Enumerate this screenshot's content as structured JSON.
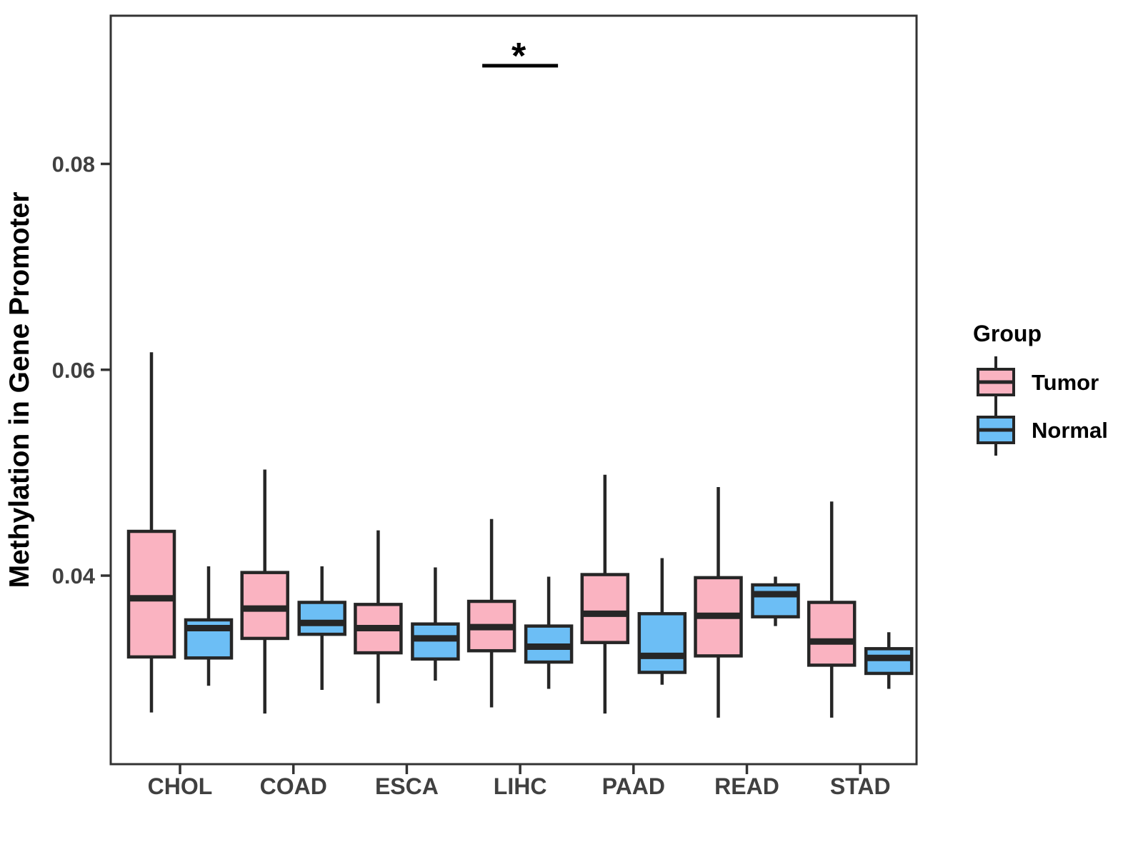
{
  "chart_data": {
    "type": "grouped_boxplot",
    "title": "",
    "xlabel": "",
    "ylabel": "Methylation in Gene Promoter",
    "categories": [
      "CHOL",
      "COAD",
      "ESCA",
      "LIHC",
      "PAAD",
      "READ",
      "STAD"
    ],
    "yticks": [
      0.04,
      0.06,
      0.08
    ],
    "yticklabels": [
      "0.04",
      "0.06",
      "0.08"
    ],
    "ylim": [
      0.0217,
      0.0944
    ],
    "grid": "off",
    "panel_border": true,
    "legend": {
      "title": "Group",
      "position": "right",
      "entries": [
        {
          "label": "Tumor",
          "color": "#FAB3C1"
        },
        {
          "label": "Normal",
          "color": "#6CBEF5"
        }
      ]
    },
    "significance": {
      "category": "LIHC",
      "label": "*",
      "comparison": "Tumor vs Normal"
    },
    "style": {
      "box_edge_color": "#262626",
      "tick_label_color": "#404040",
      "panel_border_color": "#333333"
    },
    "series": [
      {
        "name": "Tumor",
        "color": "#FAB3C1",
        "boxes": [
          {
            "category": "CHOL",
            "low": 0.0267,
            "q1": 0.0321,
            "median": 0.0378,
            "q3": 0.0443,
            "high": 0.0617
          },
          {
            "category": "COAD",
            "low": 0.0266,
            "q1": 0.0339,
            "median": 0.0368,
            "q3": 0.0403,
            "high": 0.0503
          },
          {
            "category": "ESCA",
            "low": 0.0276,
            "q1": 0.0325,
            "median": 0.0349,
            "q3": 0.0372,
            "high": 0.0444
          },
          {
            "category": "LIHC",
            "low": 0.0272,
            "q1": 0.0327,
            "median": 0.035,
            "q3": 0.0375,
            "high": 0.0455
          },
          {
            "category": "PAAD",
            "low": 0.0266,
            "q1": 0.0335,
            "median": 0.0363,
            "q3": 0.0401,
            "high": 0.0498
          },
          {
            "category": "READ",
            "low": 0.0262,
            "q1": 0.0322,
            "median": 0.0361,
            "q3": 0.0398,
            "high": 0.0486
          },
          {
            "category": "STAD",
            "low": 0.0262,
            "q1": 0.0313,
            "median": 0.0336,
            "q3": 0.0374,
            "high": 0.0472
          }
        ]
      },
      {
        "name": "Normal",
        "color": "#6CBEF5",
        "boxes": [
          {
            "category": "CHOL",
            "low": 0.0293,
            "q1": 0.032,
            "median": 0.0349,
            "q3": 0.0357,
            "high": 0.0409
          },
          {
            "category": "COAD",
            "low": 0.0289,
            "q1": 0.0343,
            "median": 0.0354,
            "q3": 0.0374,
            "high": 0.0409
          },
          {
            "category": "ESCA",
            "low": 0.0298,
            "q1": 0.0319,
            "median": 0.0339,
            "q3": 0.0353,
            "high": 0.0408
          },
          {
            "category": "LIHC",
            "low": 0.029,
            "q1": 0.0316,
            "median": 0.0331,
            "q3": 0.0351,
            "high": 0.0399
          },
          {
            "category": "PAAD",
            "low": 0.0294,
            "q1": 0.0306,
            "median": 0.0322,
            "q3": 0.0363,
            "high": 0.0417
          },
          {
            "category": "READ",
            "low": 0.0351,
            "q1": 0.036,
            "median": 0.0382,
            "q3": 0.0391,
            "high": 0.0399
          },
          {
            "category": "STAD",
            "low": 0.029,
            "q1": 0.0305,
            "median": 0.032,
            "q3": 0.0329,
            "high": 0.0345
          }
        ]
      }
    ]
  }
}
